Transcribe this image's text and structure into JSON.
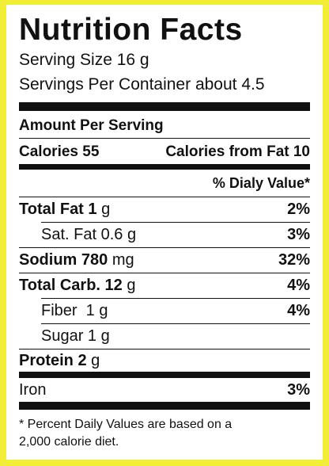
{
  "title": "Nutrition Facts",
  "serving_size": "Serving Size 16 g",
  "servings_per_container": "Servings Per Container about 4.5",
  "amount_per_serving": "Amount Per Serving",
  "calories": "Calories 55",
  "calories_from_fat": "Calories from Fat 10",
  "daily_value_header": "% Dialy Value*",
  "rows": [
    {
      "name": "Total Fat 1",
      "amount": "g",
      "percent": "2%"
    },
    {
      "name": "Sat. Fat 0.6 g",
      "percent": "3%"
    },
    {
      "name": "Sodium 780",
      "amount": "mg",
      "percent": "32%"
    },
    {
      "name": "Total Carb. 12",
      "amount": "g",
      "percent": "4%"
    },
    {
      "name": "Fiber  1 g",
      "percent": "4%"
    },
    {
      "name": "Sugar 1 g"
    },
    {
      "name": "Protein 2",
      "amount": "g"
    },
    {
      "name": "Iron",
      "percent": "3%"
    }
  ],
  "footnote": [
    "* Percent Daily Values are based on a",
    "2,000 calorie diet."
  ]
}
